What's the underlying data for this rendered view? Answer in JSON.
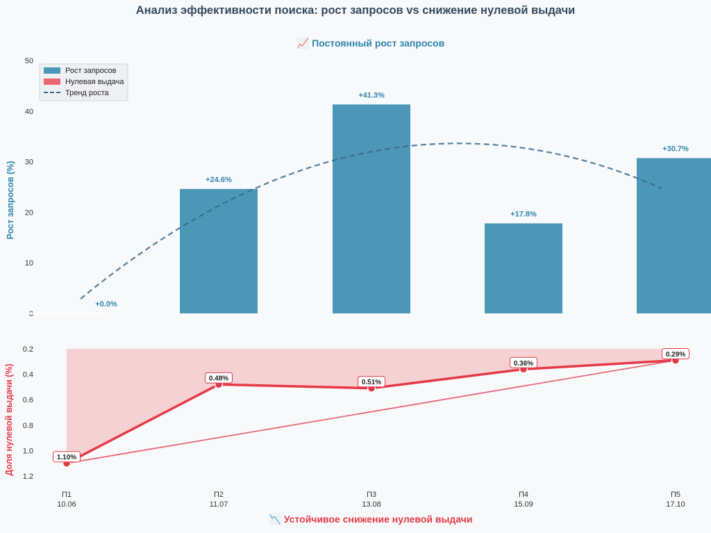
{
  "title": "Анализ эффективности поиска: рост запросов vs снижение нулевой выдачи",
  "colors": {
    "bar": "#2e86ab",
    "zero": "#e63946",
    "trend": "#34678a",
    "fill": "#f4c7cb"
  },
  "chart_data": [
    {
      "type": "bar",
      "subtitle": "📈 Постоянный рост запросов",
      "ylabel": "Рост запросов (%)",
      "ylim": [
        0,
        50
      ],
      "yticks": [
        "0",
        "10",
        "20",
        "30",
        "40",
        "50"
      ],
      "categories": [
        "П1",
        "П2",
        "П3",
        "П4",
        "П5"
      ],
      "series": [
        {
          "name": "Рост запросов",
          "values": [
            0.0,
            24.6,
            41.3,
            17.8,
            30.7
          ]
        }
      ],
      "value_labels": [
        "+0.0%",
        "+24.6%",
        "+41.3%",
        "+17.8%",
        "+30.7%"
      ],
      "trend": {
        "name": "Тренд роста",
        "style": "dashed"
      },
      "legend": {
        "position": "top-left",
        "entries": [
          "Рост запросов",
          "Нулевая выдача",
          "Тренд роста"
        ]
      }
    },
    {
      "type": "line",
      "xlabel": "📉 Устойчивое снижение нулевой выдачи",
      "ylabel": "Доля нулевой выдачи (%)",
      "ylim": [
        1.2,
        0.2
      ],
      "y_inverted": true,
      "yticks": [
        "0.2",
        "0.4",
        "0.6",
        "0.8",
        "1.0",
        "1.2"
      ],
      "categories": [
        "П1",
        "П2",
        "П3",
        "П4",
        "П5"
      ],
      "dates": [
        "10.06",
        "11.07",
        "13.08",
        "15.09",
        "17.10"
      ],
      "series": [
        {
          "name": "Нулевая выдача",
          "values": [
            1.1,
            0.48,
            0.51,
            0.36,
            0.29
          ]
        }
      ],
      "value_labels": [
        "1.10%",
        "0.48%",
        "0.51%",
        "0.36%",
        "0.29%"
      ]
    }
  ]
}
